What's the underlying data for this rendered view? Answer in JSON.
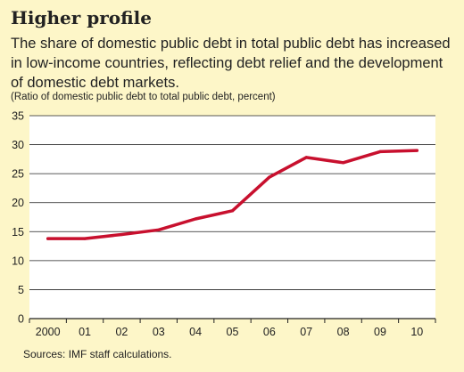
{
  "title": "Higher profile",
  "subtitle": "The share of domestic public debt in total public debt has increased in low-income countries, reflecting debt relief and the development of domestic debt markets.",
  "note": "(Ratio of domestic public debt to total public debt, percent)",
  "source": "Sources: IMF staff calculations.",
  "colors": {
    "background": "#fdf6c8",
    "plot_background": "#ffffff",
    "line": "#c8102e",
    "grid": "#222222"
  },
  "chart_data": {
    "type": "line",
    "categories": [
      "2000",
      "01",
      "02",
      "03",
      "04",
      "05",
      "06",
      "07",
      "08",
      "09",
      "10"
    ],
    "series": [
      {
        "values": [
          13.8,
          13.8,
          14.5,
          15.3,
          17.2,
          18.6,
          24.4,
          27.8,
          26.9,
          28.8,
          29.0
        ]
      }
    ],
    "ylim": [
      0,
      35
    ],
    "yticks": [
      0,
      5,
      10,
      15,
      20,
      25,
      30,
      35
    ],
    "grid": true,
    "xlabel": "",
    "ylabel": ""
  }
}
